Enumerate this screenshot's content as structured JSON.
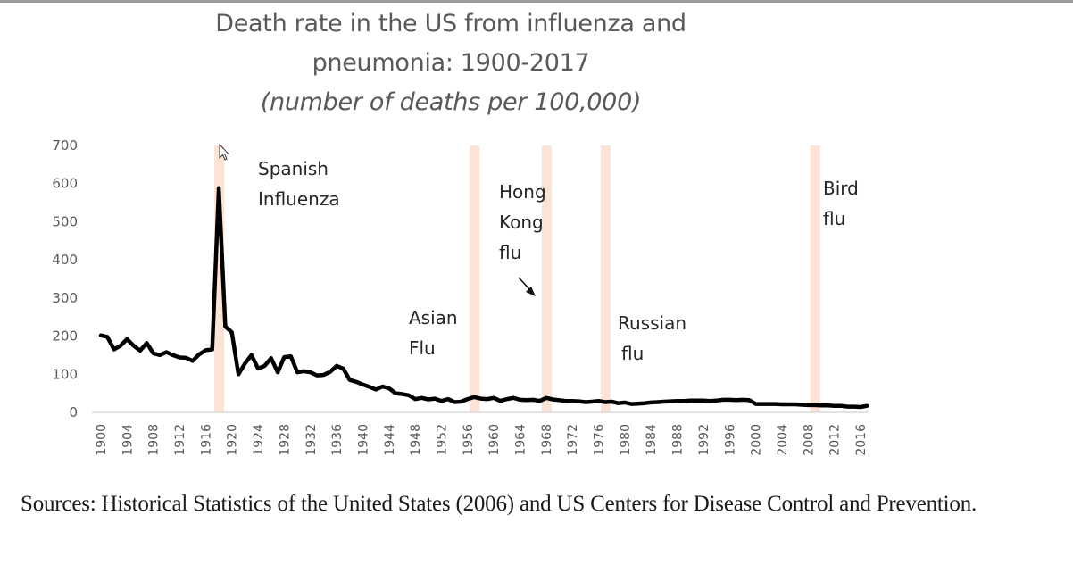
{
  "chart_data": {
    "type": "line",
    "title": "Death rate in the US from influenza and",
    "title_line2": "pneumonia: 1900-2017",
    "subtitle": "(number of deaths per 100,000)",
    "xlabel": "",
    "ylabel": "",
    "ylim": [
      0,
      700
    ],
    "xlim": [
      1900,
      2017
    ],
    "grid": false,
    "y_ticks": [
      "0",
      "100",
      "200",
      "300",
      "400",
      "500",
      "600",
      "700"
    ],
    "x_ticks": [
      "1900",
      "1904",
      "1908",
      "1912",
      "1916",
      "1920",
      "1924",
      "1928",
      "1932",
      "1936",
      "1940",
      "1944",
      "1948",
      "1952",
      "1956",
      "1960",
      "1964",
      "1968",
      "1972",
      "1976",
      "1980",
      "1984",
      "1988",
      "1992",
      "1996",
      "2000",
      "2004",
      "2008",
      "2012",
      "2016"
    ],
    "series": [
      {
        "name": "Death rate",
        "color": "#000000",
        "x": [
          1900,
          1901,
          1902,
          1903,
          1904,
          1905,
          1906,
          1907,
          1908,
          1909,
          1910,
          1911,
          1912,
          1913,
          1914,
          1915,
          1916,
          1917,
          1918,
          1919,
          1920,
          1921,
          1922,
          1923,
          1924,
          1925,
          1926,
          1927,
          1928,
          1929,
          1930,
          1931,
          1932,
          1933,
          1934,
          1935,
          1936,
          1937,
          1938,
          1939,
          1940,
          1941,
          1942,
          1943,
          1944,
          1945,
          1946,
          1947,
          1948,
          1949,
          1950,
          1951,
          1952,
          1953,
          1954,
          1955,
          1956,
          1957,
          1958,
          1959,
          1960,
          1961,
          1962,
          1963,
          1964,
          1965,
          1966,
          1967,
          1968,
          1969,
          1970,
          1971,
          1972,
          1973,
          1974,
          1975,
          1976,
          1977,
          1978,
          1979,
          1980,
          1981,
          1982,
          1983,
          1984,
          1985,
          1986,
          1987,
          1988,
          1989,
          1990,
          1991,
          1992,
          1993,
          1994,
          1995,
          1996,
          1997,
          1998,
          1999,
          2000,
          2001,
          2002,
          2003,
          2004,
          2005,
          2006,
          2007,
          2008,
          2009,
          2010,
          2011,
          2012,
          2013,
          2014,
          2015,
          2016,
          2017
        ],
        "values": [
          202,
          198,
          165,
          175,
          192,
          175,
          162,
          182,
          155,
          150,
          158,
          150,
          144,
          143,
          135,
          152,
          163,
          165,
          588,
          225,
          210,
          100,
          128,
          150,
          115,
          122,
          142,
          105,
          145,
          147,
          105,
          108,
          105,
          97,
          98,
          106,
          122,
          115,
          85,
          80,
          73,
          67,
          60,
          68,
          63,
          50,
          48,
          45,
          35,
          38,
          34,
          36,
          30,
          35,
          27,
          28,
          35,
          40,
          36,
          35,
          38,
          30,
          35,
          38,
          33,
          32,
          33,
          30,
          38,
          34,
          32,
          30,
          30,
          29,
          27,
          28,
          30,
          27,
          28,
          24,
          26,
          22,
          23,
          24,
          26,
          27,
          28,
          29,
          30,
          30,
          31,
          31,
          31,
          30,
          31,
          33,
          33,
          32,
          33,
          32,
          22,
          22,
          22,
          22,
          21,
          21,
          21,
          20,
          19,
          19,
          18,
          18,
          17,
          17,
          15,
          15,
          14,
          17
        ]
      }
    ],
    "annotations": [
      {
        "text": [
          "Spanish",
          "Influenza"
        ],
        "x": 1918
      },
      {
        "text": [
          "Asian",
          "Flu"
        ],
        "x": 1957
      },
      {
        "text": [
          "Hong",
          "Kong",
          "flu"
        ],
        "x": 1968,
        "arrow": true
      },
      {
        "text": [
          "Russian",
          "flu"
        ],
        "x": 1977
      },
      {
        "text": [
          "Bird",
          "flu"
        ],
        "x": 2009
      }
    ],
    "highlight_bands": [
      {
        "label": "Spanish Influenza",
        "year": 1918,
        "color": "#fbe3d6"
      },
      {
        "label": "Asian Flu",
        "year": 1957,
        "color": "#fbe3d6"
      },
      {
        "label": "Hong Kong flu",
        "year": 1968,
        "color": "#fbe3d6"
      },
      {
        "label": "Russian flu",
        "year": 1977,
        "color": "#fbe3d6"
      },
      {
        "label": "Bird flu",
        "year": 2009,
        "color": "#fbe3d6"
      }
    ]
  },
  "title_lines": [
    "Death rate in the US from influenza and",
    "pneumonia: 1900-2017",
    "(number of deaths per 100,000)"
  ],
  "source_note": "Sources: Historical Statistics of the United States (2006) and US Centers for Disease Control and Prevention."
}
